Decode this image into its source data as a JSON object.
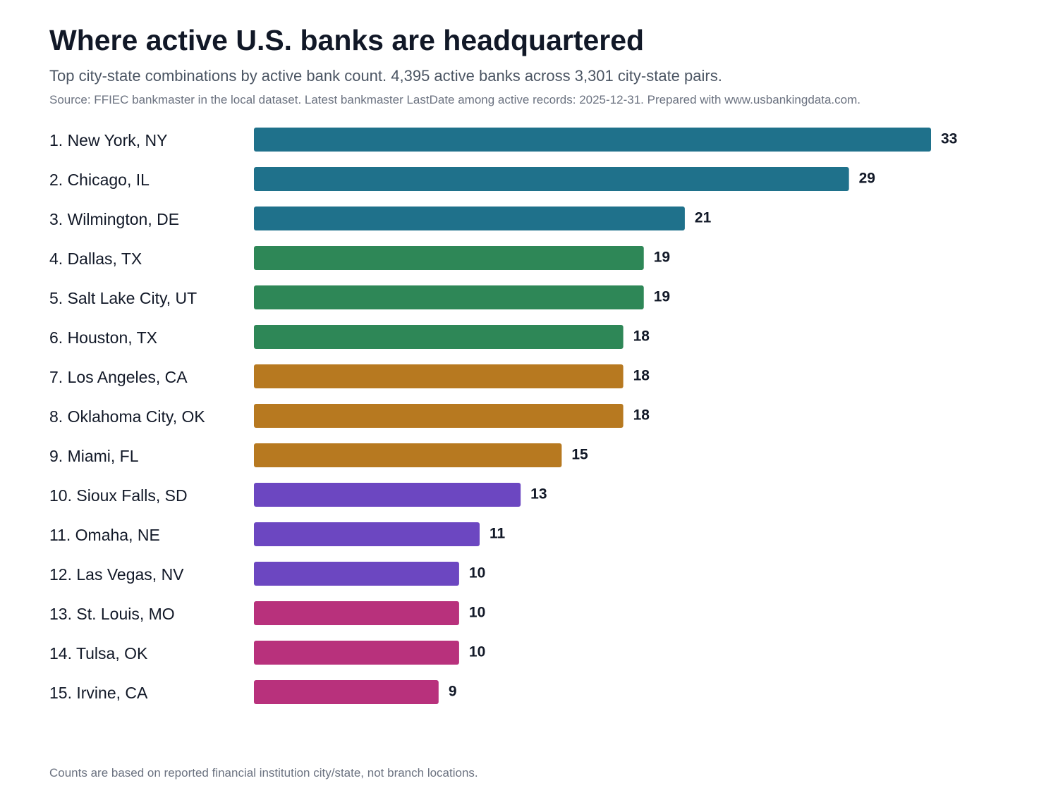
{
  "header": {
    "title": "Where active U.S. banks are headquartered",
    "subtitle": "Top city-state combinations by active bank count. 4,395 active banks across 3,301 city-state pairs.",
    "source": "Source: FFIEC bankmaster in the local dataset. Latest bankmaster LastDate among active records: 2025-12-31. Prepared with www.usbankingdata.com."
  },
  "footer": {
    "note": "Counts are based on reported financial institution city/state, not branch locations."
  },
  "chart_data": {
    "type": "bar",
    "orientation": "horizontal",
    "categories": [
      "1. New York, NY",
      "2. Chicago, IL",
      "3. Wilmington, DE",
      "4. Dallas, TX",
      "5. Salt Lake City, UT",
      "6. Houston, TX",
      "7. Los Angeles, CA",
      "8. Oklahoma City, OK",
      "9. Miami, FL",
      "10. Sioux Falls, SD",
      "11. Omaha, NE",
      "12. Las Vegas, NV",
      "13. St. Louis, MO",
      "14. Tulsa, OK",
      "15. Irvine, CA"
    ],
    "values": [
      33,
      29,
      21,
      19,
      19,
      18,
      18,
      18,
      15,
      13,
      11,
      10,
      10,
      10,
      9
    ],
    "colors": [
      "#1f718b",
      "#1f718b",
      "#1f718b",
      "#2e8757",
      "#2e8757",
      "#2e8757",
      "#b77920",
      "#b77920",
      "#b77920",
      "#6c47c1",
      "#6c47c1",
      "#6c47c1",
      "#b8317c",
      "#b8317c",
      "#b8317c"
    ],
    "xlim": [
      0,
      33
    ],
    "grid": false,
    "legend": "none",
    "data_labels": true
  }
}
